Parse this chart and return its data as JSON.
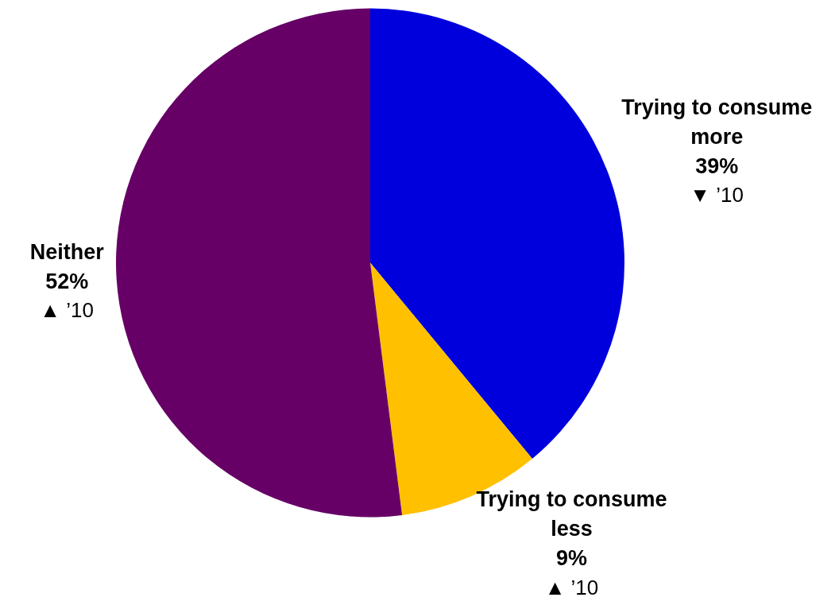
{
  "chart_data": {
    "type": "pie",
    "categories": [
      "Trying to consume more",
      "Trying to consume less",
      "Neither"
    ],
    "values": [
      39,
      9,
      52
    ],
    "colors": [
      "#0000dd",
      "#ffc000",
      "#660066"
    ],
    "value_labels": [
      "39%",
      "9%",
      "52%"
    ],
    "legend": false,
    "annotations": [
      {
        "text": "▼ ’10",
        "x": "Trying to consume more"
      },
      {
        "text": "▲ ’10",
        "x": "Trying to consume less"
      },
      {
        "text": "▲ ’10",
        "x": "Neither"
      }
    ]
  }
}
